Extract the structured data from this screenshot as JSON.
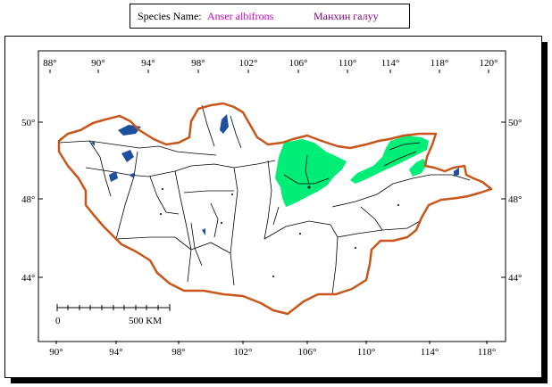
{
  "header": {
    "species_label": "Species Name:",
    "scientific_name": "Anser albifrons",
    "mongolian_name": "Манхин галуу",
    "scientific_color": "#cc00cc",
    "mongolian_color": "#800080"
  },
  "map": {
    "top_longitude_labels": [
      "88°",
      "90°",
      "94°",
      "98°",
      "102°",
      "106°",
      "110°",
      "114°",
      "118°",
      "120°"
    ],
    "bottom_longitude_labels": [
      "90°",
      "94°",
      "98°",
      "102°",
      "106°",
      "110°",
      "114°",
      "118°"
    ],
    "left_latitude_labels": [
      "50°",
      "48°",
      "44°"
    ],
    "right_latitude_labels": [
      "50°",
      "48°",
      "44°"
    ],
    "scale_bar": {
      "start_label": "0",
      "end_label": "500 KM"
    },
    "colors": {
      "border": "#c8561a",
      "range": "#00ee77",
      "water": "#1f4f9f",
      "lines": "#000000"
    }
  }
}
